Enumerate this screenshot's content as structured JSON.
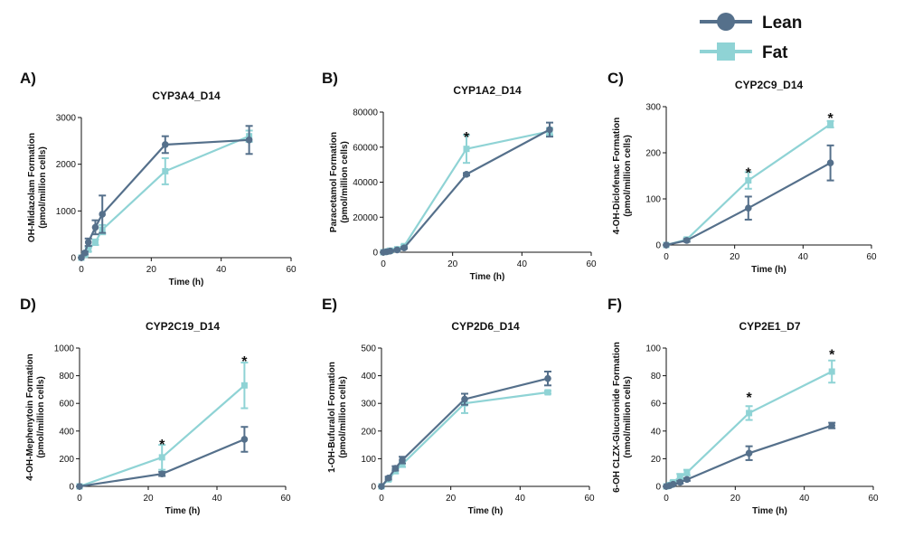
{
  "legend": [
    {
      "name": "Lean",
      "color": "#55708b",
      "marker": "circle"
    },
    {
      "name": "Fat",
      "color": "#8fd3d5",
      "marker": "square"
    }
  ],
  "chart_data": [
    {
      "type": "line",
      "letter": "A)",
      "title": "CYP3A4_D14",
      "xlabel": "Time (h)",
      "ylabel": [
        "OH-Midazolam Formation",
        "(pmol/million cells)"
      ],
      "xlim": [
        0,
        60
      ],
      "ylim": [
        0,
        3000
      ],
      "xticks": [
        0,
        20,
        40,
        60
      ],
      "yticks": [
        0,
        1000,
        2000,
        3000
      ],
      "series": [
        {
          "name": "Lean",
          "x": [
            0,
            1,
            2,
            4,
            6,
            24,
            48
          ],
          "y": [
            0,
            100,
            330,
            650,
            930,
            2420,
            2520
          ],
          "err": [
            0,
            30,
            80,
            150,
            400,
            180,
            300
          ]
        },
        {
          "name": "Fat",
          "x": [
            0,
            1,
            2,
            4,
            6,
            24,
            48
          ],
          "y": [
            0,
            60,
            170,
            330,
            600,
            1850,
            2600
          ],
          "err": [
            0,
            20,
            40,
            60,
            100,
            280,
            120
          ]
        }
      ],
      "stars": []
    },
    {
      "type": "line",
      "letter": "B)",
      "title": "CYP1A2_D14",
      "xlabel": "Time (h)",
      "ylabel": [
        "Paracetamol Formation",
        "(pmol/million cells)"
      ],
      "xlim": [
        0,
        60
      ],
      "ylim": [
        0,
        80000
      ],
      "xticks": [
        0,
        20,
        40,
        60
      ],
      "yticks": [
        0,
        20000,
        40000,
        60000,
        80000
      ],
      "series": [
        {
          "name": "Lean",
          "x": [
            0,
            1,
            2,
            4,
            6,
            24,
            48
          ],
          "y": [
            0,
            300,
            700,
            1300,
            2500,
            44500,
            70000
          ],
          "err": [
            0,
            100,
            200,
            300,
            500,
            700,
            4000
          ]
        },
        {
          "name": "Fat",
          "x": [
            0,
            1,
            2,
            4,
            6,
            24,
            48
          ],
          "y": [
            0,
            400,
            900,
            1700,
            3500,
            59000,
            69000
          ],
          "err": [
            0,
            100,
            200,
            300,
            700,
            8000,
            2000
          ]
        }
      ],
      "stars": [
        {
          "x": 24,
          "y": 67000
        }
      ]
    },
    {
      "type": "line",
      "letter": "C)",
      "title": "CYP2C9_D14",
      "xlabel": "Time (h)",
      "ylabel": [
        "4-OH-Diclofenac Formation",
        "(pmol/million cells)"
      ],
      "xlim": [
        0,
        60
      ],
      "ylim": [
        0,
        300
      ],
      "xticks": [
        0,
        20,
        40,
        60
      ],
      "yticks": [
        0,
        100,
        200,
        300
      ],
      "series": [
        {
          "name": "Lean",
          "x": [
            0,
            6,
            24,
            48
          ],
          "y": [
            0,
            10,
            80,
            178
          ],
          "err": [
            0,
            3,
            25,
            38
          ]
        },
        {
          "name": "Fat",
          "x": [
            0,
            6,
            24,
            48
          ],
          "y": [
            0,
            12,
            140,
            262
          ],
          "err": [
            0,
            3,
            18,
            7
          ]
        }
      ],
      "stars": [
        {
          "x": 24,
          "y": 162
        },
        {
          "x": 48,
          "y": 280
        }
      ]
    },
    {
      "type": "line",
      "letter": "D)",
      "title": "CYP2C19_D14",
      "xlabel": "Time (h)",
      "ylabel": [
        "4-OH-Mephenytoin Formation",
        "(pmol/million cells)"
      ],
      "xlim": [
        0,
        60
      ],
      "ylim": [
        0,
        1000
      ],
      "xticks": [
        0,
        20,
        40,
        60
      ],
      "yticks": [
        0,
        200,
        400,
        600,
        800,
        1000
      ],
      "series": [
        {
          "name": "Lean",
          "x": [
            0,
            24,
            48
          ],
          "y": [
            0,
            90,
            340
          ],
          "err": [
            0,
            15,
            90
          ]
        },
        {
          "name": "Fat",
          "x": [
            0,
            24,
            48
          ],
          "y": [
            0,
            210,
            730
          ],
          "err": [
            0,
            90,
            165
          ]
        }
      ],
      "stars": [
        {
          "x": 24,
          "y": 320
        },
        {
          "x": 48,
          "y": 920
        }
      ]
    },
    {
      "type": "line",
      "letter": "E)",
      "title": "CYP2D6_D14",
      "xlabel": "Time (h)",
      "ylabel": [
        "1-OH-Bufuralol Formation",
        "(pmol/million cells)"
      ],
      "xlim": [
        0,
        60
      ],
      "ylim": [
        0,
        500
      ],
      "xticks": [
        0,
        20,
        40,
        60
      ],
      "yticks": [
        0,
        100,
        200,
        300,
        400,
        500
      ],
      "series": [
        {
          "name": "Lean",
          "x": [
            0,
            2,
            4,
            6,
            24,
            48
          ],
          "y": [
            0,
            30,
            65,
            95,
            315,
            390
          ],
          "err": [
            0,
            5,
            8,
            12,
            20,
            25
          ]
        },
        {
          "name": "Fat",
          "x": [
            0,
            2,
            4,
            6,
            24,
            48
          ],
          "y": [
            0,
            25,
            55,
            80,
            300,
            340
          ],
          "err": [
            0,
            5,
            8,
            10,
            35,
            5
          ]
        }
      ],
      "stars": []
    },
    {
      "type": "line",
      "letter": "F)",
      "title": "CYP2E1_D7",
      "xlabel": "Time (h)",
      "ylabel": [
        "6-OH CLZX-Glucuronide Formation",
        "(nmol/million cells)"
      ],
      "xlim": [
        0,
        60
      ],
      "ylim": [
        0,
        100
      ],
      "xticks": [
        0,
        20,
        40,
        60
      ],
      "yticks": [
        0,
        20,
        40,
        60,
        80,
        100
      ],
      "series": [
        {
          "name": "Lean",
          "x": [
            0,
            1,
            2,
            4,
            6,
            24,
            48
          ],
          "y": [
            0,
            0.5,
            1.5,
            3,
            5,
            24,
            44
          ],
          "err": [
            0,
            0.3,
            0.5,
            1,
            1,
            5,
            2
          ]
        },
        {
          "name": "Fat",
          "x": [
            0,
            1,
            2,
            4,
            6,
            24,
            48
          ],
          "y": [
            0,
            1,
            3,
            7,
            10,
            53,
            83
          ],
          "err": [
            0,
            0.3,
            1,
            2,
            2,
            5,
            8
          ]
        }
      ],
      "stars": [
        {
          "x": 24,
          "y": 66
        },
        {
          "x": 48,
          "y": 97
        }
      ]
    }
  ]
}
